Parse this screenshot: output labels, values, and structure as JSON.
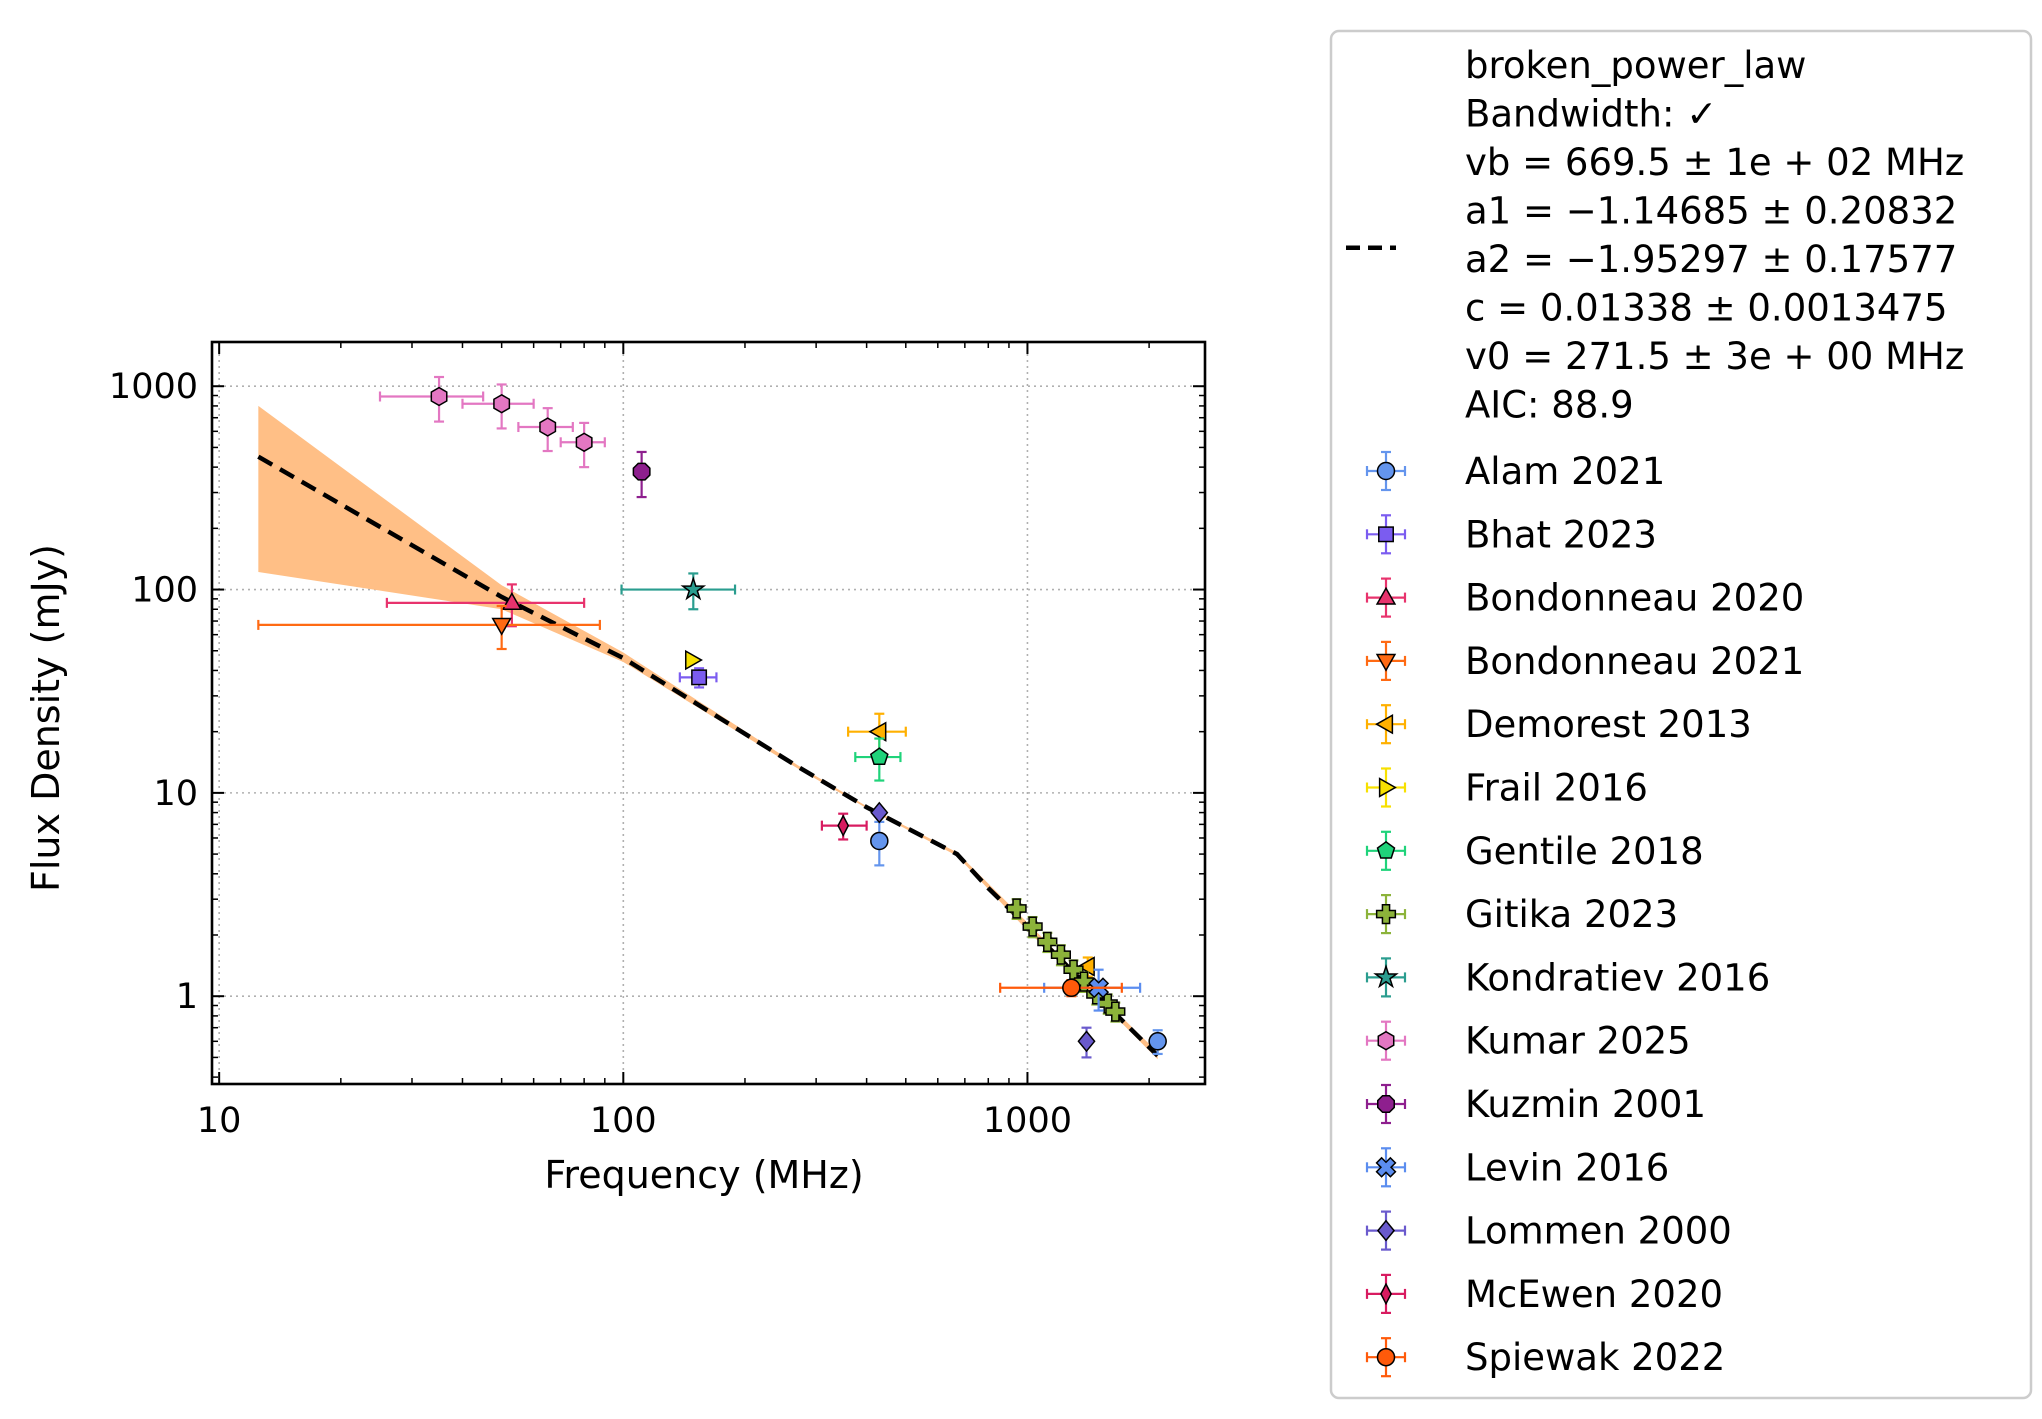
{
  "chart_data": {
    "type": "scatter",
    "xlabel": "Frequency (MHz)",
    "ylabel": "Flux Density (mJy)",
    "xscale": "log",
    "yscale": "log",
    "xlim": [
      9.6,
      2750
    ],
    "ylim": [
      0.37,
      1650
    ],
    "xticks": [
      {
        "v": 10,
        "label": "10"
      },
      {
        "v": 100,
        "label": "100"
      },
      {
        "v": 1000,
        "label": "1000"
      }
    ],
    "yticks": [
      {
        "v": 1,
        "label": "1"
      },
      {
        "v": 10,
        "label": "10"
      },
      {
        "v": 100,
        "label": "100"
      },
      {
        "v": 1000,
        "label": "1000"
      }
    ],
    "grid": true,
    "legend_position": "outside-right",
    "fit": {
      "name": "broken_power_law",
      "legend_lines": [
        "broken_power_law",
        "Bandwidth: ✓",
        "vb = 669.5 ± 1e + 02 MHz",
        "a1 = −1.14685 ± 0.20832",
        "a2 = −1.95297 ± 0.17577",
        "c = 0.01338 ± 0.0013475",
        "v0 = 271.5 ± 3e + 00 MHz",
        "AIC: 88.9"
      ],
      "line_color": "#000000",
      "band_color": "#ffbf86",
      "line": [
        [
          12.5,
          450
        ],
        [
          50,
          92
        ],
        [
          100,
          46
        ],
        [
          271.5,
          13.38
        ],
        [
          400,
          8.5
        ],
        [
          669.5,
          5
        ],
        [
          800,
          3.4
        ],
        [
          1000,
          2.2
        ],
        [
          1500,
          0.99
        ],
        [
          2100,
          0.51
        ]
      ],
      "band_upper": [
        [
          12.5,
          800
        ],
        [
          50,
          105
        ],
        [
          100,
          49
        ],
        [
          271.5,
          13.6
        ],
        [
          400,
          8.6
        ],
        [
          669.5,
          5.1
        ],
        [
          1000,
          2.3
        ],
        [
          1500,
          1.02
        ],
        [
          2100,
          0.53
        ]
      ],
      "band_lower": [
        [
          12.5,
          122
        ],
        [
          50,
          80
        ],
        [
          100,
          44
        ],
        [
          271.5,
          13.1
        ],
        [
          400,
          8.4
        ],
        [
          669.5,
          4.9
        ],
        [
          1000,
          2.1
        ],
        [
          1500,
          0.96
        ],
        [
          2100,
          0.49
        ]
      ]
    },
    "series": [
      {
        "name": "Alam 2021",
        "color": "#6495ed",
        "marker": "circle",
        "points": [
          {
            "x": 430,
            "y": 5.8,
            "xerr": [
              12,
              12
            ],
            "yerr": [
              1.4,
              1.4
            ]
          },
          {
            "x": 2100,
            "y": 0.6,
            "xerr": [
              25,
              25
            ],
            "yerr": [
              0.08,
              0.08
            ]
          }
        ]
      },
      {
        "name": "Bhat 2023",
        "color": "#7b5cf0",
        "marker": "square",
        "points": [
          {
            "x": 154,
            "y": 37,
            "xerr": [
              16,
              16
            ],
            "yerr": [
              4,
              4
            ]
          }
        ]
      },
      {
        "name": "Bondonneau 2020",
        "color": "#e8336d",
        "marker": "triangle-up",
        "points": [
          {
            "x": 53,
            "y": 86,
            "xerr": [
              27,
              27
            ],
            "yerr": [
              20,
              20
            ]
          }
        ]
      },
      {
        "name": "Bondonneau 2021",
        "color": "#ff6a13",
        "marker": "triangle-down",
        "points": [
          {
            "x": 50,
            "y": 67,
            "xerr": [
              37.5,
              37.5
            ],
            "yerr": [
              16,
              16
            ]
          }
        ]
      },
      {
        "name": "Demorest 2013",
        "color": "#ffb000",
        "marker": "triangle-left",
        "points": [
          {
            "x": 430,
            "y": 20,
            "xerr": [
              70,
              70
            ],
            "yerr": [
              4.5,
              4.5
            ]
          },
          {
            "x": 1410,
            "y": 1.4,
            "xerr": [
              0,
              0
            ],
            "yerr": [
              0.15,
              0.15
            ]
          }
        ]
      },
      {
        "name": "Frail 2016",
        "color": "#f7e000",
        "marker": "triangle-right",
        "points": [
          {
            "x": 148,
            "y": 45,
            "xerr": [
              0,
              0
            ],
            "yerr": [
              0,
              0
            ]
          }
        ]
      },
      {
        "name": "Gentile 2018",
        "color": "#1fd37a",
        "marker": "pentagon",
        "points": [
          {
            "x": 430,
            "y": 15,
            "xerr": [
              55,
              55
            ],
            "yerr": [
              3.5,
              3.5
            ]
          }
        ]
      },
      {
        "name": "Gitika 2023",
        "color": "#8cb33a",
        "marker": "plus",
        "points": [
          {
            "x": 940,
            "y": 2.7,
            "xerr": [
              25,
              25
            ],
            "yerr": [
              0.3,
              0.3
            ]
          },
          {
            "x": 1030,
            "y": 2.2,
            "xerr": [
              25,
              25
            ],
            "yerr": [
              0.25,
              0.25
            ]
          },
          {
            "x": 1120,
            "y": 1.85,
            "xerr": [
              25,
              25
            ],
            "yerr": [
              0.2,
              0.2
            ]
          },
          {
            "x": 1210,
            "y": 1.6,
            "xerr": [
              25,
              25
            ],
            "yerr": [
              0.18,
              0.18
            ]
          },
          {
            "x": 1300,
            "y": 1.35,
            "xerr": [
              25,
              25
            ],
            "yerr": [
              0.15,
              0.15
            ]
          },
          {
            "x": 1380,
            "y": 1.18,
            "xerr": [
              25,
              25
            ],
            "yerr": [
              0.13,
              0.13
            ]
          },
          {
            "x": 1480,
            "y": 1.02,
            "xerr": [
              25,
              25
            ],
            "yerr": [
              0.11,
              0.11
            ]
          },
          {
            "x": 1580,
            "y": 0.92,
            "xerr": [
              25,
              25
            ],
            "yerr": [
              0.1,
              0.1
            ]
          },
          {
            "x": 1650,
            "y": 0.84,
            "xerr": [
              25,
              25
            ],
            "yerr": [
              0.09,
              0.09
            ]
          }
        ]
      },
      {
        "name": "Kondratiev 2016",
        "color": "#2a9d8f",
        "marker": "star",
        "points": [
          {
            "x": 149,
            "y": 100,
            "xerr": [
              50,
              40
            ],
            "yerr": [
              20,
              20
            ]
          }
        ]
      },
      {
        "name": "Kumar 2025",
        "color": "#e377c2",
        "marker": "hexagon",
        "points": [
          {
            "x": 35,
            "y": 890,
            "xerr": [
              10,
              10
            ],
            "yerr": [
              220,
              220
            ]
          },
          {
            "x": 50,
            "y": 820,
            "xerr": [
              10,
              10
            ],
            "yerr": [
              200,
              200
            ]
          },
          {
            "x": 65,
            "y": 630,
            "xerr": [
              10,
              10
            ],
            "yerr": [
              150,
              150
            ]
          },
          {
            "x": 80,
            "y": 530,
            "xerr": [
              10,
              10
            ],
            "yerr": [
              130,
              130
            ]
          }
        ]
      },
      {
        "name": "Kuzmin 2001",
        "color": "#8e1f8e",
        "marker": "octagon",
        "points": [
          {
            "x": 111,
            "y": 380,
            "xerr": [
              0,
              0
            ],
            "yerr": [
              95,
              95
            ]
          }
        ]
      },
      {
        "name": "Levin 2016",
        "color": "#5b8def",
        "marker": "cross",
        "points": [
          {
            "x": 1500,
            "y": 1.1,
            "xerr": [
              400,
              400
            ],
            "yerr": [
              0.25,
              0.25
            ]
          }
        ]
      },
      {
        "name": "Lommen 2000",
        "color": "#6a5acd",
        "marker": "diamond",
        "points": [
          {
            "x": 430,
            "y": 8,
            "xerr": [
              0,
              0
            ],
            "yerr": [
              0,
              0
            ]
          },
          {
            "x": 1400,
            "y": 0.6,
            "xerr": [
              0,
              0
            ],
            "yerr": [
              0.1,
              0.1
            ]
          }
        ]
      },
      {
        "name": "McEwen 2020",
        "color": "#d81b60",
        "marker": "thin-diamond",
        "points": [
          {
            "x": 350,
            "y": 6.9,
            "xerr": [
              40,
              50
            ],
            "yerr": [
              1,
              1
            ]
          }
        ]
      },
      {
        "name": "Spiewak 2022",
        "color": "#ff5a0a",
        "marker": "circle",
        "points": [
          {
            "x": 1284,
            "y": 1.1,
            "xerr": [
              428,
              428
            ],
            "yerr": [
              0.1,
              0.1
            ]
          }
        ]
      }
    ]
  }
}
